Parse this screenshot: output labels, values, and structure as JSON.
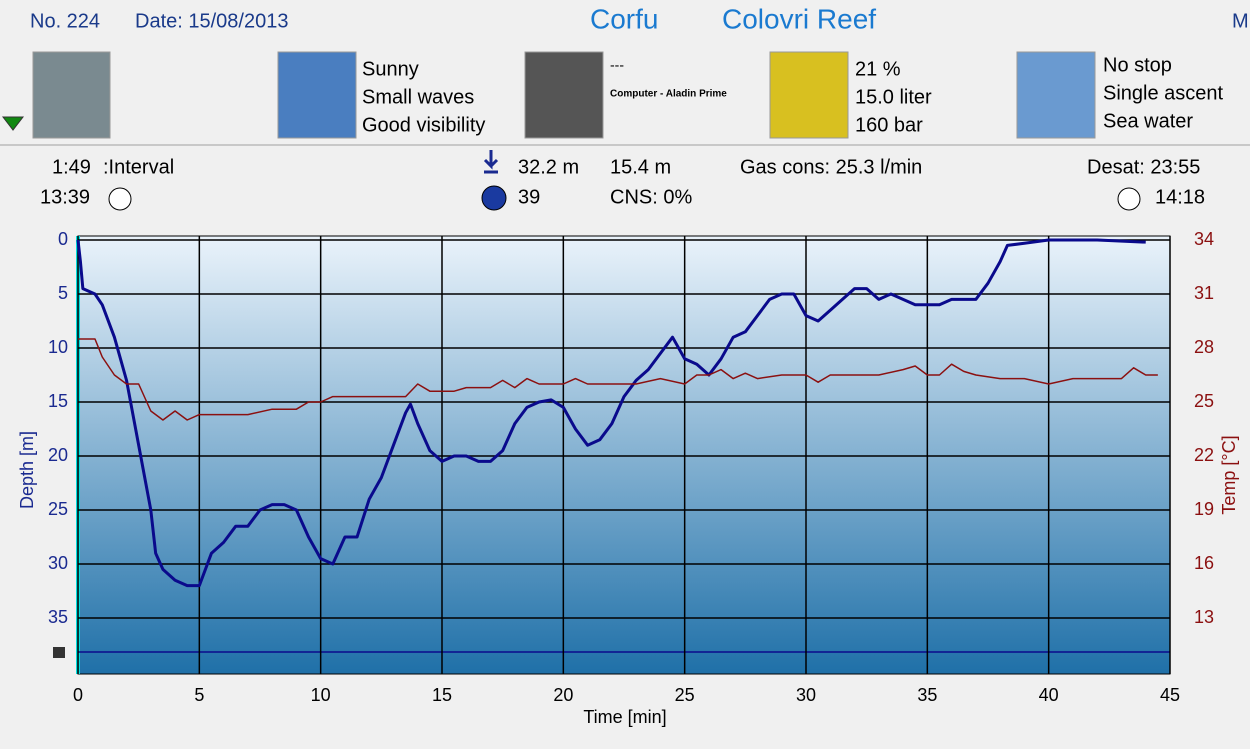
{
  "header": {
    "number": "No. 224",
    "date": "Date: 15/08/2013",
    "location": "Corfu",
    "site": "Colovri Reef",
    "cut": "M"
  },
  "equipment": {
    "weather": [
      "Sunny",
      "Small waves",
      "Good visibility"
    ],
    "computer": [
      "---",
      "Computer - Aladin Prime"
    ],
    "gas": [
      "21 %",
      "15.0 liter",
      "160 bar"
    ],
    "dive": [
      "No stop",
      "Single ascent",
      "Sea water"
    ]
  },
  "stats": {
    "interval": "1:49",
    "interval_label": ":Interval",
    "start": "13:39",
    "max_depth": "32.2 m",
    "avg_depth": "15.4 m",
    "gas_cons": "Gas cons: 25.3 l/min",
    "desat": "Desat: 23:55",
    "duration": "39",
    "cns": "CNS:  0%",
    "end": "14:18"
  },
  "chart_data": {
    "type": "line",
    "xlabel": "Time [min]",
    "ylabel": "Depth [m]",
    "y2label": "Temp [°C]",
    "xlim": [
      0,
      45
    ],
    "xticks": [
      0,
      5,
      10,
      15,
      20,
      25,
      30,
      35,
      40,
      45
    ],
    "ylim": [
      0,
      40
    ],
    "y_reversed": true,
    "yticks": [
      0,
      5,
      10,
      15,
      20,
      25,
      30,
      35
    ],
    "y2lim": [
      10,
      34
    ],
    "y2ticks": [
      13,
      16,
      19,
      22,
      25,
      28,
      31,
      34
    ],
    "grid": true,
    "series": [
      {
        "name": "Depth [m]",
        "color": "#0a0a8c",
        "x": [
          0,
          0.1,
          0.2,
          0.7,
          1,
          1.5,
          2,
          2.5,
          3,
          3.2,
          3.5,
          4,
          4.5,
          5,
          5.5,
          6,
          6.5,
          7,
          7.5,
          8,
          8.5,
          9,
          9.5,
          10,
          10.5,
          11,
          11.5,
          12,
          12.5,
          13,
          13.5,
          13.7,
          14,
          14.5,
          15,
          15.5,
          16,
          16.5,
          17,
          17.5,
          18,
          18.5,
          19,
          19.5,
          20,
          20.5,
          21,
          21.5,
          22,
          22.5,
          23,
          23.5,
          24,
          24.5,
          25,
          25.5,
          26,
          26.5,
          27,
          27.5,
          28,
          28.5,
          29,
          29.5,
          30,
          30.5,
          31,
          31.5,
          32,
          32.5,
          33,
          33.5,
          34,
          34.5,
          35,
          35.5,
          36,
          36.5,
          37,
          37.5,
          38,
          38.3,
          39,
          40,
          42,
          44
        ],
        "values": [
          0,
          2,
          4.5,
          5,
          6,
          9,
          13,
          19,
          25,
          29,
          30.5,
          31.5,
          32,
          32,
          29,
          28,
          26.5,
          26.5,
          25,
          24.5,
          24.5,
          25,
          27.5,
          29.5,
          30,
          27.5,
          27.5,
          24,
          22,
          19,
          16,
          15.2,
          17,
          19.5,
          20.5,
          20,
          20,
          20.5,
          20.5,
          19.5,
          17,
          15.5,
          15,
          14.8,
          15.5,
          17.5,
          19,
          18.5,
          17,
          14.5,
          13,
          12,
          10.5,
          9,
          11,
          11.5,
          12.5,
          11,
          9,
          8.5,
          7,
          5.5,
          5,
          5,
          7,
          7.5,
          6.5,
          5.5,
          4.5,
          4.5,
          5.5,
          5,
          5.5,
          6,
          6,
          6,
          5.5,
          5.5,
          5.5,
          4,
          2,
          0.5,
          0.3,
          0,
          0,
          0.2
        ]
      },
      {
        "name": "Temp [°C]",
        "color": "#8b1010",
        "axis": "y2",
        "x": [
          0,
          0.7,
          1,
          1.5,
          2,
          2.5,
          3,
          3.5,
          4,
          4.5,
          5,
          7,
          8,
          9,
          9.5,
          10,
          10.5,
          13.5,
          14,
          14.5,
          15.5,
          16,
          17,
          17.5,
          18,
          18.5,
          19,
          20,
          20.5,
          21,
          23,
          24,
          25,
          25.5,
          26,
          26.5,
          27,
          27.5,
          28,
          29,
          30,
          30.5,
          31,
          32,
          33,
          34,
          34.5,
          35,
          35.5,
          36,
          36.5,
          37,
          38,
          39,
          40,
          41,
          43,
          43.5,
          44,
          44.5
        ],
        "values": [
          28.5,
          28.5,
          27.5,
          26.5,
          26,
          26,
          24.5,
          24,
          24.5,
          24,
          24.3,
          24.3,
          24.6,
          24.6,
          25,
          25,
          25.3,
          25.3,
          26,
          25.6,
          25.6,
          25.8,
          25.8,
          26.2,
          25.8,
          26.3,
          26,
          26,
          26.3,
          26,
          26,
          26.3,
          26,
          26.5,
          26.5,
          26.8,
          26.3,
          26.6,
          26.3,
          26.5,
          26.5,
          26.1,
          26.5,
          26.5,
          26.5,
          26.8,
          27,
          26.5,
          26.5,
          27.1,
          26.7,
          26.5,
          26.3,
          26.3,
          26,
          26.3,
          26.3,
          26.9,
          26.5,
          26.5
        ]
      }
    ]
  }
}
